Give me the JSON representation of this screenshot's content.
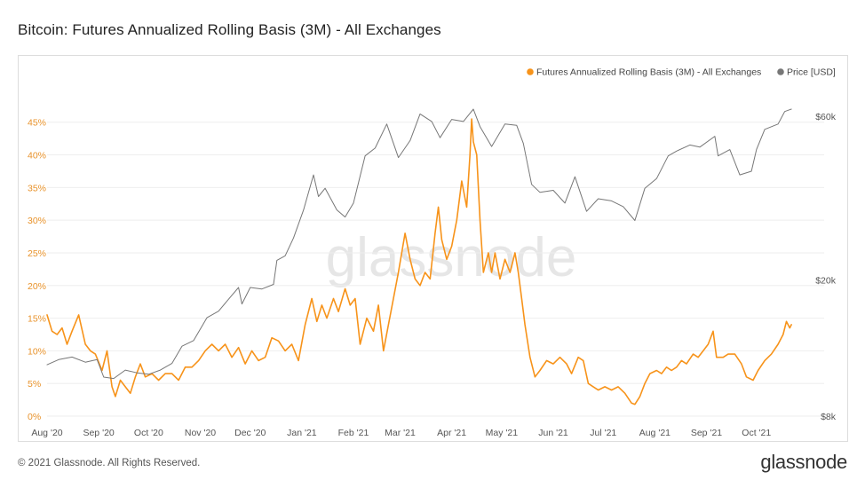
{
  "page": {
    "title": "Bitcoin: Futures Annualized Rolling Basis (3M) - All Exchanges",
    "copyright": "© 2021 Glassnode. All Rights Reserved.",
    "brand": "glassnode",
    "watermark": "glassnode"
  },
  "colors": {
    "basis": "#f7931a",
    "price": "#777777",
    "basis_axis": "#e8922a",
    "axis_text": "#555555"
  },
  "chart_data": {
    "type": "line",
    "title": "Bitcoin: Futures Annualized Rolling Basis (3M) - All Exchanges",
    "legend": [
      "Futures Annualized Rolling Basis (3M) - All Exchanges",
      "Price [USD]"
    ],
    "legend_position": "top-right",
    "x": {
      "start": "2020-08-01",
      "end": "2021-10-31",
      "tick_labels": [
        "Aug '20",
        "Sep '20",
        "Oct '20",
        "Nov '20",
        "Dec '20",
        "Jan '21",
        "Feb '21",
        "Mar '21",
        "Apr '21",
        "May '21",
        "Jun '21",
        "Jul '21",
        "Aug '21",
        "Sep '21",
        "Oct '21"
      ]
    },
    "y_left": {
      "name": "Futures Annualized Rolling Basis (3M) - All Exchanges",
      "unit": "%",
      "range": [
        0,
        47
      ],
      "ticks": [
        0,
        5,
        10,
        15,
        20,
        25,
        30,
        35,
        40,
        45
      ],
      "tick_labels": [
        "0%",
        "5%",
        "10%",
        "15%",
        "20%",
        "25%",
        "30%",
        "35%",
        "40%",
        "45%"
      ]
    },
    "y_right": {
      "name": "Price [USD]",
      "scale": "log",
      "range": [
        8000,
        63000
      ],
      "ticks": [
        8000,
        20000,
        60000
      ],
      "tick_labels": [
        "$8k",
        "$20k",
        "$60k"
      ]
    },
    "series": [
      {
        "name": "Futures Annualized Rolling Basis (3M) - All Exchanges",
        "axis": "left",
        "points": [
          [
            "2020-08-01",
            15.5
          ],
          [
            "2020-08-04",
            13
          ],
          [
            "2020-08-07",
            12.5
          ],
          [
            "2020-08-10",
            13.5
          ],
          [
            "2020-08-13",
            11
          ],
          [
            "2020-08-16",
            13
          ],
          [
            "2020-08-20",
            15.5
          ],
          [
            "2020-08-24",
            11
          ],
          [
            "2020-08-27",
            10
          ],
          [
            "2020-08-30",
            9.5
          ],
          [
            "2020-09-03",
            7
          ],
          [
            "2020-09-06",
            10
          ],
          [
            "2020-09-09",
            4.5
          ],
          [
            "2020-09-11",
            3
          ],
          [
            "2020-09-14",
            5.5
          ],
          [
            "2020-09-17",
            4.5
          ],
          [
            "2020-09-20",
            3.5
          ],
          [
            "2020-09-23",
            6
          ],
          [
            "2020-09-26",
            8
          ],
          [
            "2020-09-29",
            6
          ],
          [
            "2020-10-03",
            6.5
          ],
          [
            "2020-10-07",
            5.5
          ],
          [
            "2020-10-11",
            6.5
          ],
          [
            "2020-10-15",
            6.5
          ],
          [
            "2020-10-19",
            5.5
          ],
          [
            "2020-10-23",
            7.5
          ],
          [
            "2020-10-27",
            7.5
          ],
          [
            "2020-10-31",
            8.5
          ],
          [
            "2020-11-04",
            10
          ],
          [
            "2020-11-08",
            11
          ],
          [
            "2020-11-12",
            10
          ],
          [
            "2020-11-16",
            11
          ],
          [
            "2020-11-20",
            9
          ],
          [
            "2020-11-24",
            10.5
          ],
          [
            "2020-11-28",
            8
          ],
          [
            "2020-12-02",
            10
          ],
          [
            "2020-12-06",
            8.5
          ],
          [
            "2020-12-10",
            9
          ],
          [
            "2020-12-14",
            12
          ],
          [
            "2020-12-18",
            11.5
          ],
          [
            "2020-12-22",
            10
          ],
          [
            "2020-12-26",
            11
          ],
          [
            "2020-12-30",
            8.5
          ],
          [
            "2021-01-03",
            14
          ],
          [
            "2021-01-07",
            18
          ],
          [
            "2021-01-10",
            14.5
          ],
          [
            "2021-01-13",
            17
          ],
          [
            "2021-01-16",
            15
          ],
          [
            "2021-01-20",
            18
          ],
          [
            "2021-01-23",
            16
          ],
          [
            "2021-01-27",
            19.5
          ],
          [
            "2021-01-30",
            17
          ],
          [
            "2021-02-02",
            18
          ],
          [
            "2021-02-05",
            11
          ],
          [
            "2021-02-09",
            15
          ],
          [
            "2021-02-13",
            13
          ],
          [
            "2021-02-16",
            17
          ],
          [
            "2021-02-19",
            10
          ],
          [
            "2021-02-22",
            14
          ],
          [
            "2021-02-25",
            18
          ],
          [
            "2021-02-28",
            22
          ],
          [
            "2021-03-04",
            28
          ],
          [
            "2021-03-07",
            24
          ],
          [
            "2021-03-10",
            21
          ],
          [
            "2021-03-13",
            20
          ],
          [
            "2021-03-16",
            22
          ],
          [
            "2021-03-19",
            21
          ],
          [
            "2021-03-22",
            28
          ],
          [
            "2021-03-24",
            32
          ],
          [
            "2021-03-26",
            27
          ],
          [
            "2021-03-29",
            24
          ],
          [
            "2021-04-01",
            26
          ],
          [
            "2021-04-04",
            30
          ],
          [
            "2021-04-07",
            36
          ],
          [
            "2021-04-10",
            32
          ],
          [
            "2021-04-12",
            40
          ],
          [
            "2021-04-13",
            45.5
          ],
          [
            "2021-04-14",
            42
          ],
          [
            "2021-04-16",
            40
          ],
          [
            "2021-04-18",
            30
          ],
          [
            "2021-04-20",
            22
          ],
          [
            "2021-04-23",
            25
          ],
          [
            "2021-04-25",
            22
          ],
          [
            "2021-04-27",
            25
          ],
          [
            "2021-04-30",
            21
          ],
          [
            "2021-05-03",
            24
          ],
          [
            "2021-05-06",
            22
          ],
          [
            "2021-05-09",
            25
          ],
          [
            "2021-05-11",
            22
          ],
          [
            "2021-05-13",
            18
          ],
          [
            "2021-05-15",
            14
          ],
          [
            "2021-05-18",
            9
          ],
          [
            "2021-05-21",
            6
          ],
          [
            "2021-05-24",
            7
          ],
          [
            "2021-05-28",
            8.5
          ],
          [
            "2021-06-01",
            8
          ],
          [
            "2021-06-05",
            9
          ],
          [
            "2021-06-09",
            8
          ],
          [
            "2021-06-12",
            6.5
          ],
          [
            "2021-06-16",
            9
          ],
          [
            "2021-06-19",
            8.5
          ],
          [
            "2021-06-22",
            5
          ],
          [
            "2021-06-25",
            4.5
          ],
          [
            "2021-06-28",
            4
          ],
          [
            "2021-07-02",
            4.5
          ],
          [
            "2021-07-06",
            4
          ],
          [
            "2021-07-10",
            4.5
          ],
          [
            "2021-07-14",
            3.5
          ],
          [
            "2021-07-18",
            2
          ],
          [
            "2021-07-20",
            1.8
          ],
          [
            "2021-07-23",
            3
          ],
          [
            "2021-07-26",
            5
          ],
          [
            "2021-07-29",
            6.5
          ],
          [
            "2021-08-02",
            7
          ],
          [
            "2021-08-05",
            6.5
          ],
          [
            "2021-08-08",
            7.5
          ],
          [
            "2021-08-11",
            7
          ],
          [
            "2021-08-14",
            7.5
          ],
          [
            "2021-08-17",
            8.5
          ],
          [
            "2021-08-20",
            8
          ],
          [
            "2021-08-24",
            9.5
          ],
          [
            "2021-08-27",
            9
          ],
          [
            "2021-08-30",
            10
          ],
          [
            "2021-09-02",
            11
          ],
          [
            "2021-09-05",
            13
          ],
          [
            "2021-09-07",
            9
          ],
          [
            "2021-09-11",
            9
          ],
          [
            "2021-09-14",
            9.5
          ],
          [
            "2021-09-18",
            9.5
          ],
          [
            "2021-09-22",
            8
          ],
          [
            "2021-09-25",
            6
          ],
          [
            "2021-09-29",
            5.5
          ],
          [
            "2021-10-02",
            7
          ],
          [
            "2021-10-06",
            8.5
          ],
          [
            "2021-10-10",
            9.5
          ],
          [
            "2021-10-14",
            11
          ],
          [
            "2021-10-17",
            12.5
          ],
          [
            "2021-10-19",
            14.5
          ],
          [
            "2021-10-21",
            13.5
          ],
          [
            "2021-10-22",
            14
          ]
        ]
      },
      {
        "name": "Price [USD]",
        "axis": "right",
        "points": [
          [
            "2020-08-01",
            11300
          ],
          [
            "2020-08-08",
            11700
          ],
          [
            "2020-08-16",
            11900
          ],
          [
            "2020-08-24",
            11500
          ],
          [
            "2020-08-31",
            11700
          ],
          [
            "2020-09-04",
            10400
          ],
          [
            "2020-09-10",
            10300
          ],
          [
            "2020-09-17",
            10900
          ],
          [
            "2020-09-24",
            10700
          ],
          [
            "2020-10-01",
            10600
          ],
          [
            "2020-10-08",
            10900
          ],
          [
            "2020-10-15",
            11400
          ],
          [
            "2020-10-21",
            12800
          ],
          [
            "2020-10-28",
            13300
          ],
          [
            "2020-11-05",
            15500
          ],
          [
            "2020-11-12",
            16200
          ],
          [
            "2020-11-19",
            17800
          ],
          [
            "2020-11-24",
            19000
          ],
          [
            "2020-11-26",
            17000
          ],
          [
            "2020-12-01",
            19000
          ],
          [
            "2020-12-08",
            18800
          ],
          [
            "2020-12-15",
            19400
          ],
          [
            "2020-12-17",
            22800
          ],
          [
            "2020-12-22",
            23500
          ],
          [
            "2020-12-27",
            26500
          ],
          [
            "2021-01-02",
            32000
          ],
          [
            "2021-01-08",
            40500
          ],
          [
            "2021-01-11",
            35000
          ],
          [
            "2021-01-15",
            37000
          ],
          [
            "2021-01-22",
            32000
          ],
          [
            "2021-01-27",
            30500
          ],
          [
            "2021-02-01",
            33500
          ],
          [
            "2021-02-08",
            46000
          ],
          [
            "2021-02-14",
            48500
          ],
          [
            "2021-02-21",
            57000
          ],
          [
            "2021-02-28",
            45500
          ],
          [
            "2021-03-07",
            51000
          ],
          [
            "2021-03-13",
            61000
          ],
          [
            "2021-03-20",
            58000
          ],
          [
            "2021-03-25",
            52000
          ],
          [
            "2021-04-01",
            58800
          ],
          [
            "2021-04-08",
            58000
          ],
          [
            "2021-04-14",
            63000
          ],
          [
            "2021-04-18",
            56000
          ],
          [
            "2021-04-25",
            49000
          ],
          [
            "2021-05-03",
            57000
          ],
          [
            "2021-05-10",
            56500
          ],
          [
            "2021-05-14",
            50000
          ],
          [
            "2021-05-19",
            38000
          ],
          [
            "2021-05-24",
            36000
          ],
          [
            "2021-06-01",
            36500
          ],
          [
            "2021-06-08",
            33500
          ],
          [
            "2021-06-14",
            40000
          ],
          [
            "2021-06-21",
            31700
          ],
          [
            "2021-06-28",
            34500
          ],
          [
            "2021-07-06",
            34000
          ],
          [
            "2021-07-13",
            32700
          ],
          [
            "2021-07-20",
            29800
          ],
          [
            "2021-07-26",
            37000
          ],
          [
            "2021-08-02",
            39500
          ],
          [
            "2021-08-09",
            46000
          ],
          [
            "2021-08-14",
            47500
          ],
          [
            "2021-08-22",
            49500
          ],
          [
            "2021-08-28",
            48800
          ],
          [
            "2021-09-06",
            52500
          ],
          [
            "2021-09-08",
            46000
          ],
          [
            "2021-09-15",
            48000
          ],
          [
            "2021-09-21",
            40500
          ],
          [
            "2021-09-28",
            41500
          ],
          [
            "2021-10-01",
            48000
          ],
          [
            "2021-10-06",
            55000
          ],
          [
            "2021-10-14",
            57000
          ],
          [
            "2021-10-18",
            62000
          ],
          [
            "2021-10-22",
            63000
          ]
        ]
      }
    ]
  }
}
